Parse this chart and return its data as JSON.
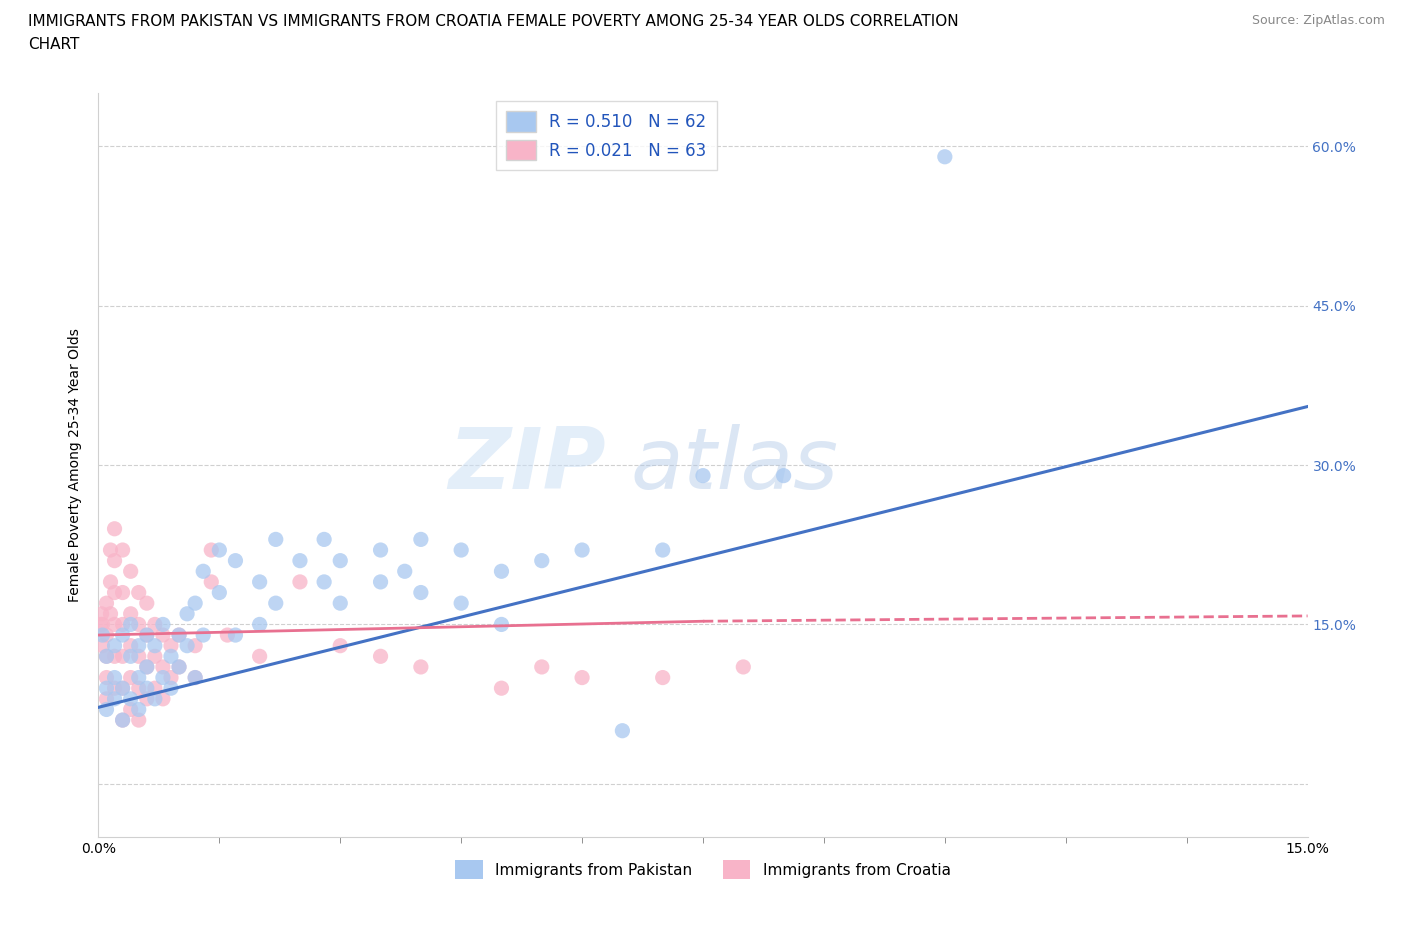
{
  "title_line1": "IMMIGRANTS FROM PAKISTAN VS IMMIGRANTS FROM CROATIA FEMALE POVERTY AMONG 25-34 YEAR OLDS CORRELATION",
  "title_line2": "CHART",
  "source": "Source: ZipAtlas.com",
  "ylabel": "Female Poverty Among 25-34 Year Olds",
  "xmin": 0.0,
  "xmax": 0.15,
  "ymin": -0.05,
  "ymax": 0.65,
  "watermark_zip": "ZIP",
  "watermark_atlas": "atlas",
  "legend_entries": [
    {
      "label": "R = 0.510   N = 62",
      "color": "#a8c8f0"
    },
    {
      "label": "R = 0.021   N = 63",
      "color": "#f8b4c8"
    }
  ],
  "legend_bottom": [
    {
      "label": "Immigrants from Pakistan",
      "color": "#a8c8f0"
    },
    {
      "label": "Immigrants from Croatia",
      "color": "#f8b4c8"
    }
  ],
  "yticks": [
    0.0,
    0.15,
    0.3,
    0.45,
    0.6
  ],
  "ytick_labels": [
    "",
    "15.0%",
    "30.0%",
    "45.0%",
    "60.0%"
  ],
  "xtick_labels": [
    "0.0%",
    "15.0%"
  ],
  "pakistan_color": "#a8c8f0",
  "croatia_color": "#f8b4c8",
  "pakistan_line_color": "#4472c4",
  "croatia_line_color": "#e87090",
  "pakistan_scatter": [
    [
      0.0005,
      0.14
    ],
    [
      0.001,
      0.12
    ],
    [
      0.001,
      0.09
    ],
    [
      0.001,
      0.07
    ],
    [
      0.002,
      0.1
    ],
    [
      0.002,
      0.13
    ],
    [
      0.002,
      0.08
    ],
    [
      0.003,
      0.14
    ],
    [
      0.003,
      0.09
    ],
    [
      0.003,
      0.06
    ],
    [
      0.004,
      0.12
    ],
    [
      0.004,
      0.08
    ],
    [
      0.004,
      0.15
    ],
    [
      0.005,
      0.1
    ],
    [
      0.005,
      0.13
    ],
    [
      0.005,
      0.07
    ],
    [
      0.006,
      0.11
    ],
    [
      0.006,
      0.09
    ],
    [
      0.006,
      0.14
    ],
    [
      0.007,
      0.13
    ],
    [
      0.007,
      0.08
    ],
    [
      0.008,
      0.15
    ],
    [
      0.008,
      0.1
    ],
    [
      0.009,
      0.12
    ],
    [
      0.009,
      0.09
    ],
    [
      0.01,
      0.14
    ],
    [
      0.01,
      0.11
    ],
    [
      0.011,
      0.16
    ],
    [
      0.011,
      0.13
    ],
    [
      0.012,
      0.17
    ],
    [
      0.012,
      0.1
    ],
    [
      0.013,
      0.2
    ],
    [
      0.013,
      0.14
    ],
    [
      0.015,
      0.22
    ],
    [
      0.015,
      0.18
    ],
    [
      0.017,
      0.21
    ],
    [
      0.017,
      0.14
    ],
    [
      0.02,
      0.19
    ],
    [
      0.02,
      0.15
    ],
    [
      0.022,
      0.23
    ],
    [
      0.022,
      0.17
    ],
    [
      0.025,
      0.21
    ],
    [
      0.028,
      0.23
    ],
    [
      0.028,
      0.19
    ],
    [
      0.03,
      0.21
    ],
    [
      0.03,
      0.17
    ],
    [
      0.035,
      0.22
    ],
    [
      0.035,
      0.19
    ],
    [
      0.038,
      0.2
    ],
    [
      0.04,
      0.23
    ],
    [
      0.04,
      0.18
    ],
    [
      0.045,
      0.22
    ],
    [
      0.045,
      0.17
    ],
    [
      0.05,
      0.2
    ],
    [
      0.05,
      0.15
    ],
    [
      0.055,
      0.21
    ],
    [
      0.06,
      0.22
    ],
    [
      0.065,
      0.05
    ],
    [
      0.07,
      0.22
    ],
    [
      0.075,
      0.29
    ],
    [
      0.085,
      0.29
    ],
    [
      0.105,
      0.59
    ]
  ],
  "croatia_scatter": [
    [
      0.0003,
      0.15
    ],
    [
      0.0004,
      0.16
    ],
    [
      0.0005,
      0.15
    ],
    [
      0.0005,
      0.13
    ],
    [
      0.001,
      0.17
    ],
    [
      0.001,
      0.14
    ],
    [
      0.001,
      0.12
    ],
    [
      0.001,
      0.1
    ],
    [
      0.001,
      0.08
    ],
    [
      0.0015,
      0.22
    ],
    [
      0.0015,
      0.19
    ],
    [
      0.0015,
      0.16
    ],
    [
      0.002,
      0.24
    ],
    [
      0.002,
      0.21
    ],
    [
      0.002,
      0.18
    ],
    [
      0.002,
      0.15
    ],
    [
      0.002,
      0.12
    ],
    [
      0.002,
      0.09
    ],
    [
      0.003,
      0.22
    ],
    [
      0.003,
      0.18
    ],
    [
      0.003,
      0.15
    ],
    [
      0.003,
      0.12
    ],
    [
      0.003,
      0.09
    ],
    [
      0.003,
      0.06
    ],
    [
      0.004,
      0.2
    ],
    [
      0.004,
      0.16
    ],
    [
      0.004,
      0.13
    ],
    [
      0.004,
      0.1
    ],
    [
      0.004,
      0.07
    ],
    [
      0.005,
      0.18
    ],
    [
      0.005,
      0.15
    ],
    [
      0.005,
      0.12
    ],
    [
      0.005,
      0.09
    ],
    [
      0.005,
      0.06
    ],
    [
      0.006,
      0.17
    ],
    [
      0.006,
      0.14
    ],
    [
      0.006,
      0.11
    ],
    [
      0.006,
      0.08
    ],
    [
      0.007,
      0.15
    ],
    [
      0.007,
      0.12
    ],
    [
      0.007,
      0.09
    ],
    [
      0.008,
      0.14
    ],
    [
      0.008,
      0.11
    ],
    [
      0.008,
      0.08
    ],
    [
      0.009,
      0.13
    ],
    [
      0.009,
      0.1
    ],
    [
      0.01,
      0.14
    ],
    [
      0.01,
      0.11
    ],
    [
      0.012,
      0.13
    ],
    [
      0.012,
      0.1
    ],
    [
      0.014,
      0.22
    ],
    [
      0.014,
      0.19
    ],
    [
      0.016,
      0.14
    ],
    [
      0.02,
      0.12
    ],
    [
      0.025,
      0.19
    ],
    [
      0.03,
      0.13
    ],
    [
      0.035,
      0.12
    ],
    [
      0.04,
      0.11
    ],
    [
      0.05,
      0.09
    ],
    [
      0.055,
      0.11
    ],
    [
      0.06,
      0.1
    ],
    [
      0.07,
      0.1
    ],
    [
      0.08,
      0.11
    ]
  ],
  "pakistan_trendline": [
    [
      0.0,
      0.072
    ],
    [
      0.15,
      0.355
    ]
  ],
  "croatia_trendline": [
    [
      0.0,
      0.14
    ],
    [
      0.075,
      0.153
    ]
  ],
  "croatia_trendline_dashed": [
    [
      0.075,
      0.153
    ],
    [
      0.15,
      0.158
    ]
  ],
  "title_fontsize": 11,
  "axis_label_fontsize": 10,
  "tick_fontsize": 10,
  "right_tick_color": "#4472c4",
  "grid_color": "#d0d0d0",
  "scatter_size": 120
}
